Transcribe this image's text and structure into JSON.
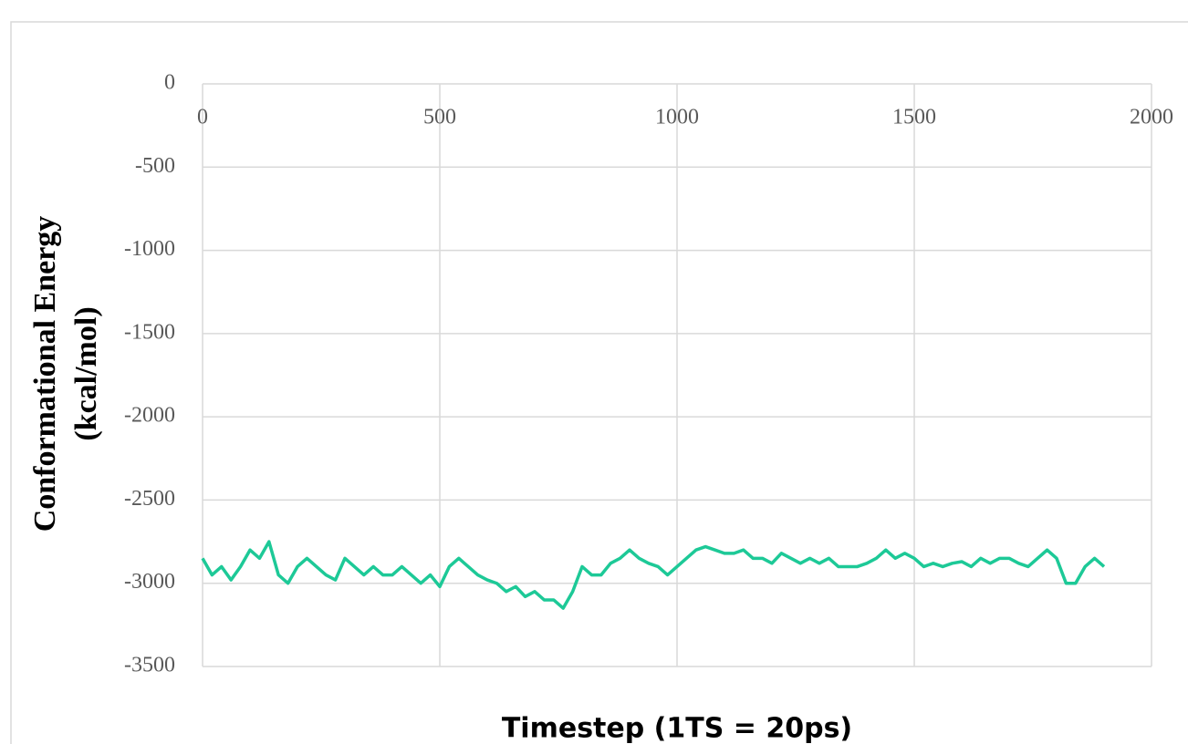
{
  "chart_data": {
    "type": "line",
    "xlabel": "Timestep (1TS = 20ps)",
    "ylabel": [
      "Conformational Energy",
      "(kcal/mol)"
    ],
    "xlim": [
      0,
      2000
    ],
    "xticks": [
      0,
      500,
      1000,
      1500,
      2000
    ],
    "ylim": [
      -3500,
      0
    ],
    "yticks": [
      0,
      -500,
      -1000,
      -1500,
      -2000,
      -2500,
      -3000,
      -3500
    ],
    "grid": true,
    "x": [
      0,
      20,
      40,
      60,
      80,
      100,
      120,
      140,
      160,
      180,
      200,
      220,
      240,
      260,
      280,
      300,
      320,
      340,
      360,
      380,
      400,
      420,
      440,
      460,
      480,
      500,
      520,
      540,
      560,
      580,
      600,
      620,
      640,
      660,
      680,
      700,
      720,
      740,
      760,
      780,
      800,
      820,
      840,
      860,
      880,
      900,
      920,
      940,
      960,
      980,
      1000,
      1020,
      1040,
      1060,
      1080,
      1100,
      1120,
      1140,
      1160,
      1180,
      1200,
      1220,
      1240,
      1260,
      1280,
      1300,
      1320,
      1340,
      1360,
      1380,
      1400,
      1420,
      1440,
      1460,
      1480,
      1500,
      1520,
      1540,
      1560,
      1580,
      1600,
      1620,
      1640,
      1660,
      1680,
      1700,
      1720,
      1740,
      1760,
      1780,
      1800,
      1820,
      1840,
      1860,
      1880,
      1900
    ],
    "series": [
      {
        "color": "#1dc997",
        "values": [
          -2850,
          -2950,
          -2900,
          -2980,
          -2900,
          -2800,
          -2850,
          -2750,
          -2950,
          -3000,
          -2900,
          -2850,
          -2900,
          -2950,
          -2980,
          -2850,
          -2900,
          -2950,
          -2900,
          -2950,
          -2950,
          -2900,
          -2950,
          -3000,
          -2950,
          -3020,
          -2900,
          -2850,
          -2900,
          -2950,
          -2980,
          -3000,
          -3050,
          -3020,
          -3080,
          -3050,
          -3100,
          -3100,
          -3150,
          -3050,
          -2900,
          -2950,
          -2950,
          -2880,
          -2850,
          -2800,
          -2850,
          -2880,
          -2900,
          -2950,
          -2900,
          -2850,
          -2800,
          -2780,
          -2800,
          -2820,
          -2820,
          -2800,
          -2850,
          -2850,
          -2880,
          -2820,
          -2850,
          -2880,
          -2850,
          -2880,
          -2850,
          -2900,
          -2900,
          -2900,
          -2880,
          -2850,
          -2800,
          -2850,
          -2820,
          -2850,
          -2900,
          -2880,
          -2900,
          -2880,
          -2870,
          -2900,
          -2850,
          -2880,
          -2850,
          -2850,
          -2880,
          -2900,
          -2850,
          -2800,
          -2850,
          -3000,
          -3000,
          -2900,
          -2850,
          -2900
        ]
      }
    ]
  }
}
